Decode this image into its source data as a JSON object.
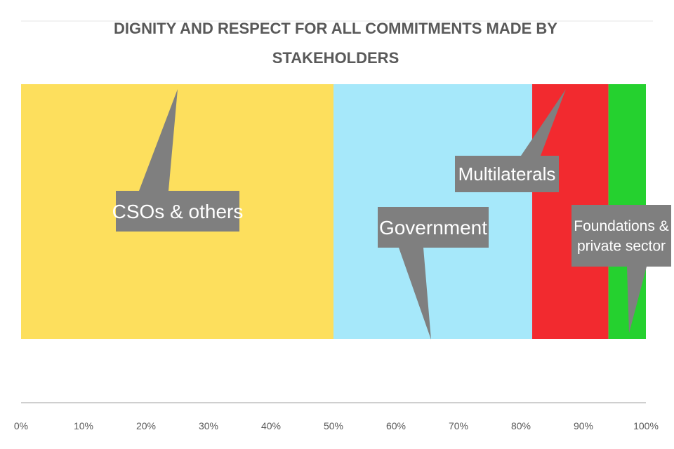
{
  "chart_data": {
    "type": "bar",
    "orientation": "horizontal",
    "stacked": true,
    "title": "DIGNITY AND RESPECT FOR ALL COMMITMENTS MADE BY STAKEHOLDERS",
    "title_lines": [
      "DIGNITY AND RESPECT FOR ALL COMMITMENTS MADE BY",
      "STAKEHOLDERS"
    ],
    "xlabel": "",
    "ylabel": "",
    "xlim": [
      0,
      100
    ],
    "x_ticks": [
      "0%",
      "10%",
      "20%",
      "30%",
      "40%",
      "50%",
      "60%",
      "70%",
      "80%",
      "90%",
      "100%"
    ],
    "series": [
      {
        "name": "CSOs & others",
        "label_lines": [
          "CSOs & others"
        ],
        "value": 50,
        "color": "#FDDF5D"
      },
      {
        "name": "Government",
        "label_lines": [
          "Government"
        ],
        "value": 31.8,
        "color": "#A6E8FA"
      },
      {
        "name": "Multilaterals",
        "label_lines": [
          "Multilaterals"
        ],
        "value": 12.2,
        "color": "#F22A2F"
      },
      {
        "name": "Foundations & private sector",
        "label_lines": [
          "Foundations &",
          "private sector"
        ],
        "value": 6.5,
        "color": "#25D12F"
      }
    ],
    "callout_color": "#7F7F7F",
    "axis_color": "#BFBFBF",
    "legend": "none"
  }
}
